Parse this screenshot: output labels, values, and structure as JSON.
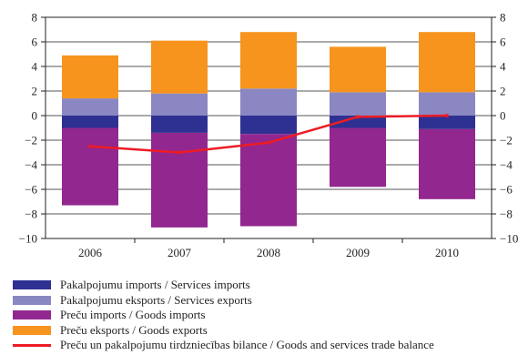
{
  "chart_data": {
    "type": "bar",
    "stacked": true,
    "categories": [
      "2006",
      "2007",
      "2008",
      "2009",
      "2010"
    ],
    "ylim": [
      -10,
      8
    ],
    "yticks": [
      8,
      6,
      4,
      2,
      0,
      -2,
      -4,
      -6,
      -8,
      -10
    ],
    "ytick_labels": [
      "8",
      "6",
      "4",
      "2",
      "0",
      "−2",
      "−4",
      "−6",
      "−8",
      "−10"
    ],
    "grid": true,
    "legend_position": "bottom",
    "series": [
      {
        "name": "Pakalpojumu imports / Services imports",
        "color": "#2e3192",
        "values": [
          -1.0,
          -1.4,
          -1.5,
          -1.0,
          -1.1
        ]
      },
      {
        "name": "Pakalpojumu eksports / Services exports",
        "color": "#8a87c3",
        "values": [
          1.4,
          1.8,
          2.2,
          1.9,
          1.9
        ]
      },
      {
        "name": "Preču imports / Goods imports",
        "color": "#92278f",
        "values": [
          -6.3,
          -7.7,
          -7.5,
          -4.8,
          -5.7
        ]
      },
      {
        "name": "Preču eksports / Goods exports",
        "color": "#f7941d",
        "values": [
          3.5,
          4.3,
          4.6,
          3.7,
          4.9
        ]
      }
    ],
    "line": {
      "name": "Preču un pakalpojumu tirdzniecības bilance / Goods and services trade balance",
      "color": "#ed1c24",
      "values": [
        -2.5,
        -3.0,
        -2.2,
        -0.1,
        0.0
      ]
    }
  }
}
